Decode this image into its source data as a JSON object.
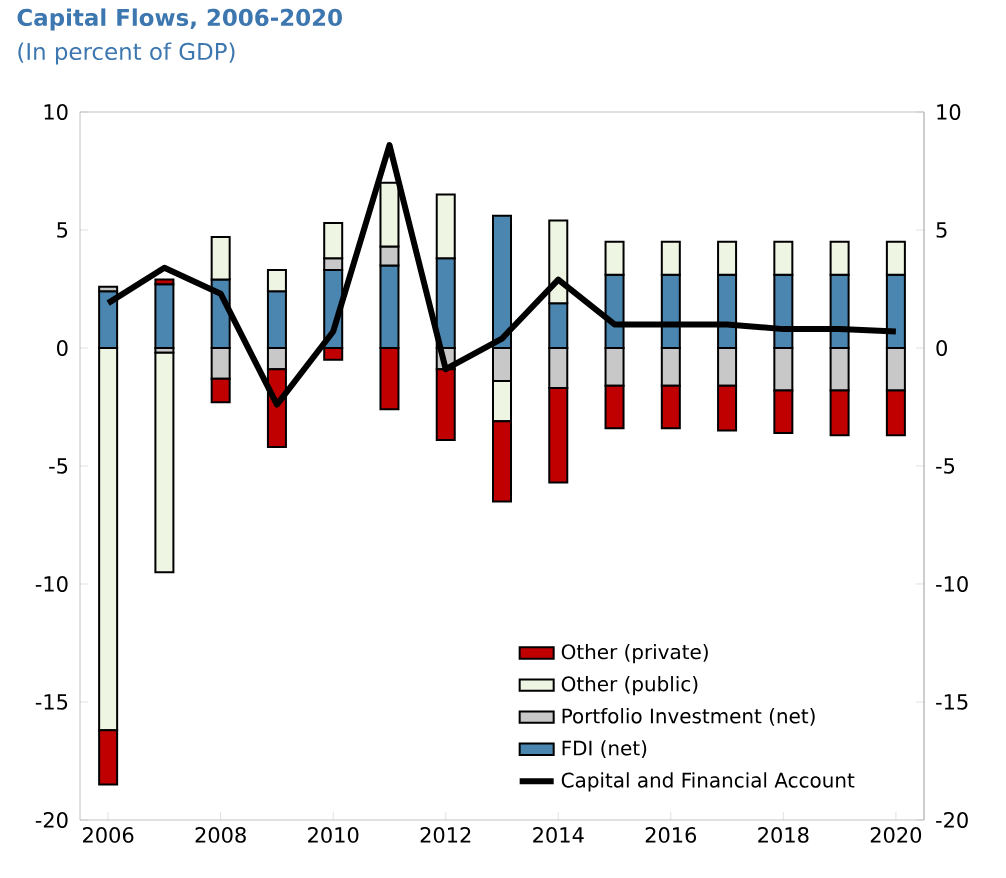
{
  "chart_data": {
    "type": "bar",
    "stacked": true,
    "title": "Capital Flows, 2006-2020",
    "subtitle": "(In percent of GDP)",
    "x": [
      2006,
      2007,
      2008,
      2009,
      2010,
      2011,
      2012,
      2013,
      2014,
      2015,
      2016,
      2017,
      2018,
      2019,
      2020
    ],
    "series": [
      {
        "name": "FDI (net)",
        "color": "#4a86b0",
        "values": [
          2.4,
          2.7,
          2.9,
          2.4,
          3.3,
          3.5,
          3.8,
          5.6,
          1.9,
          3.1,
          3.1,
          3.1,
          3.1,
          3.1,
          3.1
        ]
      },
      {
        "name": "Portfolio Investment (net)",
        "color": "#c8c8c8",
        "values": [
          0.2,
          -0.2,
          -1.3,
          -0.9,
          0.5,
          0.8,
          -0.9,
          -1.4,
          -1.7,
          -1.6,
          -1.6,
          -1.6,
          -1.8,
          -1.8,
          -1.8
        ]
      },
      {
        "name": "Other (public)",
        "color": "#eef5e2",
        "values": [
          -16.2,
          -9.3,
          1.8,
          0.9,
          1.5,
          2.7,
          2.7,
          -1.7,
          3.5,
          1.4,
          1.4,
          1.4,
          1.4,
          1.4,
          1.4
        ]
      },
      {
        "name": "Other (private)",
        "color": "#c00000",
        "values": [
          -2.3,
          0.2,
          -1.0,
          -3.3,
          -0.5,
          -2.6,
          -3.0,
          -3.4,
          -4.0,
          -1.8,
          -1.8,
          -1.9,
          -1.8,
          -1.9,
          -1.9
        ]
      },
      {
        "name": "Capital and Financial Account",
        "type": "line",
        "color": "#000000",
        "values": [
          1.9,
          3.4,
          2.3,
          -2.4,
          0.7,
          8.6,
          -0.9,
          0.4,
          2.9,
          1.0,
          1.0,
          1.0,
          0.8,
          0.8,
          0.7
        ]
      }
    ],
    "xlim": [
      2005.5,
      2020.5
    ],
    "xticks": [
      2006,
      2008,
      2010,
      2012,
      2014,
      2016,
      2018,
      2020
    ],
    "ylim": [
      -20,
      10
    ],
    "yticks": [
      -20,
      -15,
      -10,
      -5,
      0,
      5,
      10
    ],
    "y2lim": [
      -20,
      10
    ],
    "y2ticks": [
      -20,
      -15,
      -10,
      -5,
      0,
      5,
      10
    ],
    "grid": false,
    "legend": "bottom"
  }
}
